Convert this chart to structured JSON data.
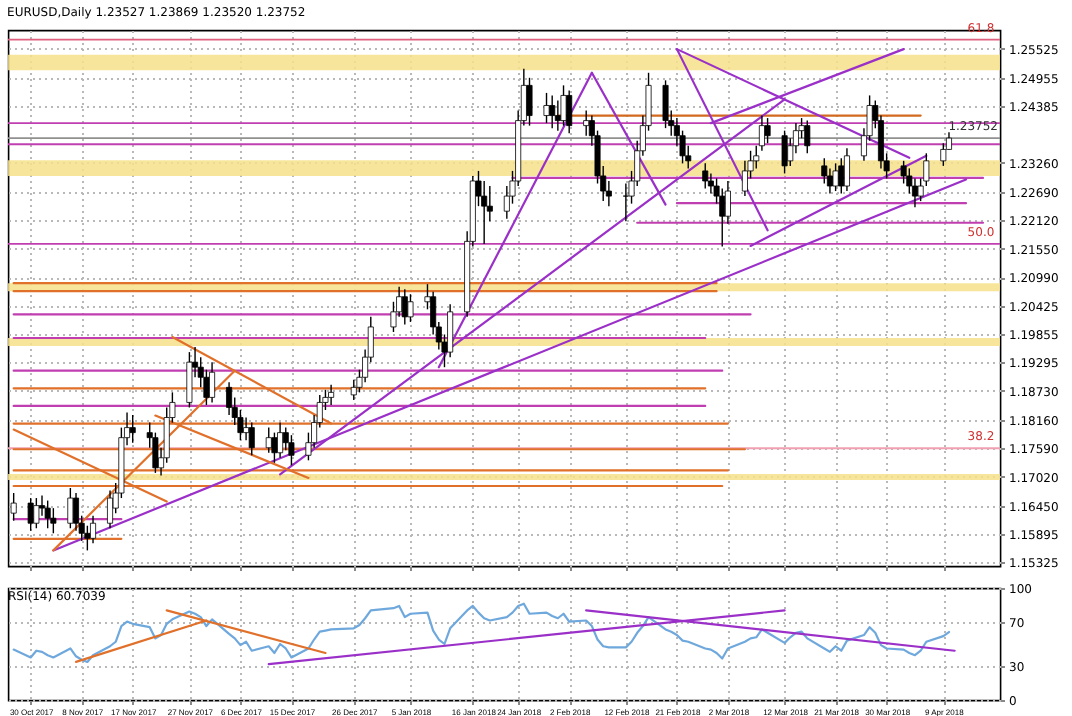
{
  "chart_data": [
    {
      "type": "candlestick",
      "title": "EURUSD,Daily  1.23527 1.23869 1.23520 1.23752",
      "tick_labels": "y",
      "grid": true,
      "x": [
        "2017-10-27",
        "2017-10-30",
        "2017-10-31",
        "2017-11-01",
        "2017-11-02",
        "2017-11-03",
        "2017-11-06",
        "2017-11-07",
        "2017-11-08",
        "2017-11-09",
        "2017-11-10",
        "2017-11-13",
        "2017-11-14",
        "2017-11-15",
        "2017-11-16",
        "2017-11-17",
        "2017-11-20",
        "2017-11-21",
        "2017-11-22",
        "2017-11-23",
        "2017-11-24",
        "2017-11-27",
        "2017-11-28",
        "2017-11-29",
        "2017-11-30",
        "2017-12-01",
        "2017-12-04",
        "2017-12-05",
        "2017-12-06",
        "2017-12-07",
        "2017-12-08",
        "2017-12-11",
        "2017-12-12",
        "2017-12-13",
        "2017-12-14",
        "2017-12-15",
        "2017-12-18",
        "2017-12-19",
        "2017-12-20",
        "2017-12-21",
        "2017-12-22",
        "2017-12-26",
        "2017-12-27",
        "2017-12-28",
        "2017-12-29",
        "2018-01-02",
        "2018-01-03",
        "2018-01-04",
        "2018-01-05",
        "2018-01-08",
        "2018-01-09",
        "2018-01-10",
        "2018-01-11",
        "2018-01-12",
        "2018-01-15",
        "2018-01-16",
        "2018-01-17",
        "2018-01-18",
        "2018-01-19",
        "2018-01-22",
        "2018-01-23",
        "2018-01-24",
        "2018-01-25",
        "2018-01-26",
        "2018-01-29",
        "2018-01-30",
        "2018-01-31",
        "2018-02-01",
        "2018-02-02",
        "2018-02-05",
        "2018-02-06",
        "2018-02-07",
        "2018-02-08",
        "2018-02-09",
        "2018-02-12",
        "2018-02-13",
        "2018-02-14",
        "2018-02-15",
        "2018-02-16",
        "2018-02-19",
        "2018-02-20",
        "2018-02-21",
        "2018-02-22",
        "2018-02-23",
        "2018-02-26",
        "2018-02-27",
        "2018-02-28",
        "2018-03-01",
        "2018-03-02",
        "2018-03-05",
        "2018-03-06",
        "2018-03-07",
        "2018-03-08",
        "2018-03-09",
        "2018-03-12",
        "2018-03-13",
        "2018-03-14",
        "2018-03-15",
        "2018-03-16",
        "2018-03-19",
        "2018-03-20",
        "2018-03-21",
        "2018-03-22",
        "2018-03-23",
        "2018-03-26",
        "2018-03-27",
        "2018-03-28",
        "2018-03-29",
        "2018-03-30",
        "2018-04-02",
        "2018-04-03",
        "2018-04-04",
        "2018-04-05",
        "2018-04-06",
        "2018-04-09",
        "2018-04-10"
      ],
      "xlim": [
        "2017-10-26",
        "2018-04-19"
      ],
      "xticks": [
        {
          "value": "2017-10-30",
          "label": null
        },
        {
          "value": "2017-11-08",
          "label": null
        },
        {
          "value": "2017-11-17",
          "label": null
        },
        {
          "value": "2017-11-27",
          "label": null
        },
        {
          "value": "2017-12-06",
          "label": null
        },
        {
          "value": "2017-12-15",
          "label": null
        },
        {
          "value": "2017-12-26",
          "label": null
        },
        {
          "value": "2018-01-05",
          "label": null
        },
        {
          "value": "2018-01-16",
          "label": null
        },
        {
          "value": "2018-01-24",
          "label": null
        },
        {
          "value": "2018-02-02",
          "label": null
        },
        {
          "value": "2018-02-12",
          "label": null
        },
        {
          "value": "2018-02-21",
          "label": null
        },
        {
          "value": "2018-03-02",
          "label": null
        },
        {
          "value": "2018-03-12",
          "label": null
        },
        {
          "value": "2018-03-21",
          "label": null
        },
        {
          "value": "2018-03-30",
          "label": null
        },
        {
          "value": "2018-04-09",
          "label": null
        }
      ],
      "ylim": [
        1.1525,
        1.259
      ],
      "yticks": [
        {
          "value": 1.15325,
          "label": "1.15325"
        },
        {
          "value": 1.15895,
          "label": "1.15895"
        },
        {
          "value": 1.1645,
          "label": "1.16450"
        },
        {
          "value": 1.1702,
          "label": "1.17020"
        },
        {
          "value": 1.1759,
          "label": "1.17590"
        },
        {
          "value": 1.1816,
          "label": "1.18160"
        },
        {
          "value": 1.1873,
          "label": "1.18730"
        },
        {
          "value": 1.19295,
          "label": "1.19295"
        },
        {
          "value": 1.19855,
          "label": "1.19855"
        },
        {
          "value": 1.20425,
          "label": "1.20425"
        },
        {
          "value": 1.2099,
          "label": "1.20990"
        },
        {
          "value": 1.2155,
          "label": "1.21550"
        },
        {
          "value": 1.2212,
          "label": "1.22120"
        },
        {
          "value": 1.2269,
          "label": "1.22690"
        },
        {
          "value": 1.2326,
          "label": "1.23260"
        },
        {
          "value": 1.24385,
          "label": "1.24385"
        },
        {
          "value": 1.24955,
          "label": "1.24955"
        },
        {
          "value": 1.25525,
          "label": "1.25525"
        }
      ],
      "ohlc": [
        [
          1.163,
          1.167,
          1.1615,
          1.165
        ],
        [
          1.165,
          1.166,
          1.1595,
          1.161
        ],
        [
          1.161,
          1.166,
          1.16,
          1.1645
        ],
        [
          1.1645,
          1.1665,
          1.1625,
          1.164
        ],
        [
          1.164,
          1.1655,
          1.16,
          1.162
        ],
        [
          1.162,
          1.164,
          1.159,
          1.161
        ],
        [
          1.161,
          1.168,
          1.16,
          1.166
        ],
        [
          1.166,
          1.167,
          1.1595,
          1.161
        ],
        [
          1.161,
          1.1625,
          1.1575,
          1.159
        ],
        [
          1.159,
          1.1605,
          1.1556,
          1.158
        ],
        [
          1.158,
          1.1625,
          1.157,
          1.161
        ],
        [
          1.161,
          1.1675,
          1.16,
          1.166
        ],
        [
          1.164,
          1.169,
          1.163,
          1.167
        ],
        [
          1.167,
          1.18,
          1.166,
          1.178
        ],
        [
          1.178,
          1.183,
          1.1765,
          1.18
        ],
        [
          1.18,
          1.1825,
          1.177,
          1.179
        ],
        [
          1.179,
          1.181,
          1.176,
          1.178
        ],
        [
          1.178,
          1.179,
          1.171,
          1.172
        ],
        [
          1.172,
          1.176,
          1.1705,
          1.174
        ],
        [
          1.174,
          1.184,
          1.173,
          1.182
        ],
        [
          1.182,
          1.187,
          1.181,
          1.185
        ],
        [
          1.185,
          1.195,
          1.184,
          1.193
        ],
        [
          1.193,
          1.196,
          1.19,
          1.192
        ],
        [
          1.192,
          1.194,
          1.188,
          1.19
        ],
        [
          1.19,
          1.1915,
          1.1845,
          1.186
        ],
        [
          1.186,
          1.193,
          1.185,
          1.191
        ],
        [
          1.188,
          1.189,
          1.1825,
          1.184
        ],
        [
          1.184,
          1.186,
          1.1805,
          1.182
        ],
        [
          1.182,
          1.1835,
          1.1775,
          1.179
        ],
        [
          1.179,
          1.182,
          1.1775,
          1.18
        ],
        [
          1.18,
          1.181,
          1.1745,
          1.176
        ],
        [
          1.176,
          1.18,
          1.175,
          1.178
        ],
        [
          1.178,
          1.179,
          1.173,
          1.175
        ],
        [
          1.175,
          1.181,
          1.174,
          1.179
        ],
        [
          1.179,
          1.18,
          1.1755,
          1.177
        ],
        [
          1.177,
          1.1785,
          1.1725,
          1.1745
        ],
        [
          1.1745,
          1.179,
          1.1735,
          1.177
        ],
        [
          1.177,
          1.1825,
          1.176,
          1.181
        ],
        [
          1.181,
          1.1865,
          1.18,
          1.185
        ],
        [
          1.185,
          1.1875,
          1.1835,
          1.186
        ],
        [
          1.186,
          1.1885,
          1.1845,
          1.187
        ],
        [
          1.1865,
          1.1895,
          1.1855,
          1.188
        ],
        [
          1.188,
          1.1915,
          1.187,
          1.19
        ],
        [
          1.19,
          1.1955,
          1.189,
          1.194
        ],
        [
          1.194,
          1.202,
          1.193,
          1.2
        ],
        [
          1.2,
          1.205,
          1.199,
          1.203
        ],
        [
          1.203,
          1.208,
          1.202,
          1.206
        ],
        [
          1.206,
          1.2075,
          1.2005,
          1.202
        ],
        [
          1.202,
          1.2065,
          1.201,
          1.205
        ],
        [
          1.205,
          1.2085,
          1.2035,
          1.206
        ],
        [
          1.206,
          1.207,
          1.1985,
          1.2
        ],
        [
          1.2,
          1.201,
          1.1955,
          1.197
        ],
        [
          1.197,
          1.1985,
          1.192,
          1.195
        ],
        [
          1.195,
          1.2045,
          1.194,
          1.203
        ],
        [
          1.203,
          1.219,
          1.202,
          1.217
        ],
        [
          1.217,
          1.23,
          1.216,
          1.229
        ],
        [
          1.229,
          1.231,
          1.224,
          1.226
        ],
        [
          1.226,
          1.229,
          1.2165,
          1.224
        ],
        [
          1.224,
          1.228,
          1.221,
          1.223
        ],
        [
          1.223,
          1.228,
          1.2215,
          1.226
        ],
        [
          1.226,
          1.231,
          1.2245,
          1.229
        ],
        [
          1.229,
          1.243,
          1.228,
          1.241
        ],
        [
          1.241,
          1.2513,
          1.24,
          1.248
        ],
        [
          1.248,
          1.2495,
          1.24,
          1.242
        ],
        [
          1.242,
          1.2465,
          1.2405,
          1.244
        ],
        [
          1.244,
          1.246,
          1.2395,
          1.242
        ],
        [
          1.242,
          1.245,
          1.239,
          1.241
        ],
        [
          1.241,
          1.248,
          1.24,
          1.246
        ],
        [
          1.246,
          1.247,
          1.2385,
          1.24
        ],
        [
          1.24,
          1.243,
          1.238,
          1.241
        ],
        [
          1.241,
          1.242,
          1.236,
          1.238
        ],
        [
          1.238,
          1.239,
          1.2285,
          1.23
        ],
        [
          1.23,
          1.232,
          1.225,
          1.227
        ],
        [
          1.227,
          1.229,
          1.224,
          1.226
        ],
        [
          1.226,
          1.2285,
          1.221,
          1.226
        ],
        [
          1.226,
          1.231,
          1.2245,
          1.229
        ],
        [
          1.229,
          1.237,
          1.228,
          1.235
        ],
        [
          1.235,
          1.242,
          1.234,
          1.24
        ],
        [
          1.24,
          1.2505,
          1.239,
          1.248
        ],
        [
          1.248,
          1.249,
          1.2395,
          1.241
        ],
        [
          1.241,
          1.243,
          1.238,
          1.24
        ],
        [
          1.24,
          1.2415,
          1.236,
          1.238
        ],
        [
          1.238,
          1.239,
          1.2325,
          1.234
        ],
        [
          1.234,
          1.236,
          1.2315,
          1.233
        ],
        [
          1.231,
          1.2325,
          1.2275,
          1.229
        ],
        [
          1.229,
          1.2305,
          1.2265,
          1.228
        ],
        [
          1.228,
          1.2295,
          1.2245,
          1.226
        ],
        [
          1.226,
          1.2275,
          1.216,
          1.222
        ],
        [
          1.222,
          1.229,
          1.2205,
          1.227
        ],
        [
          1.227,
          1.233,
          1.226,
          1.231
        ],
        [
          1.231,
          1.235,
          1.2295,
          1.233
        ],
        [
          1.233,
          1.236,
          1.2315,
          1.234
        ],
        [
          1.236,
          1.242,
          1.235,
          1.24
        ],
        [
          1.24,
          1.2415,
          1.2365,
          1.238
        ],
        [
          1.238,
          1.239,
          1.2305,
          1.232
        ],
        [
          1.233,
          1.2375,
          1.232,
          1.236
        ],
        [
          1.236,
          1.2405,
          1.2345,
          1.239
        ],
        [
          1.239,
          1.2415,
          1.2375,
          1.24
        ],
        [
          1.24,
          1.241,
          1.2345,
          1.236
        ],
        [
          1.232,
          1.2335,
          1.2285,
          1.23
        ],
        [
          1.23,
          1.2315,
          1.2265,
          1.228
        ],
        [
          1.228,
          1.2325,
          1.227,
          1.231
        ],
        [
          1.232,
          1.2335,
          1.2265,
          1.228
        ],
        [
          1.228,
          1.2355,
          1.227,
          1.234
        ],
        [
          1.234,
          1.2395,
          1.233,
          1.238
        ],
        [
          1.238,
          1.246,
          1.237,
          1.244
        ],
        [
          1.244,
          1.245,
          1.2395,
          1.241
        ],
        [
          1.241,
          1.242,
          1.2315,
          1.233
        ],
        [
          1.233,
          1.2345,
          1.2295,
          1.231
        ],
        [
          1.232,
          1.233,
          1.2285,
          1.23
        ],
        [
          1.23,
          1.2315,
          1.2265,
          1.228
        ],
        [
          1.228,
          1.2295,
          1.2238,
          1.226
        ],
        [
          1.226,
          1.2295,
          1.225,
          1.228
        ],
        [
          1.229,
          1.2345,
          1.228,
          1.233
        ],
        [
          1.233,
          1.2365,
          1.232,
          1.23527
        ],
        [
          1.23527,
          1.23869,
          1.2352,
          1.23752
        ]
      ],
      "series": [
        {
          "type": "line",
          "color": "#d2691e",
          "x": [
            "2018-01-31",
            "2018-04-05"
          ],
          "values": [
            1.242,
            1.242
          ]
        },
        {
          "type": "line",
          "color": "#c03fb0",
          "x": [
            "2018-01-23",
            "2018-04-16"
          ],
          "values": [
            1.2296,
            1.2296
          ]
        },
        {
          "type": "line",
          "color": "#c03fb0",
          "x": [
            "2018-02-21",
            "2018-04-13"
          ],
          "values": [
            1.2246,
            1.2246
          ]
        },
        {
          "type": "line",
          "color": "#c03fb0",
          "x": [
            "2018-02-14",
            "2018-04-16"
          ],
          "values": [
            1.2207,
            1.2207
          ]
        },
        {
          "type": "line",
          "color": "#e0702a",
          "x": [
            "2017-10-27",
            "2018-02-28"
          ],
          "values": [
            1.2087,
            1.2087
          ]
        },
        {
          "type": "line",
          "color": "#e0702a",
          "x": [
            "2017-10-27",
            "2018-02-28"
          ],
          "values": [
            1.2071,
            1.2071
          ]
        },
        {
          "type": "line",
          "color": "#c03fb0",
          "x": [
            "2017-10-27",
            "2018-03-06"
          ],
          "values": [
            1.2025,
            1.2025
          ]
        },
        {
          "type": "line",
          "color": "#c03fb0",
          "x": [
            "2017-10-27",
            "2018-02-26"
          ],
          "values": [
            1.1978,
            1.1978
          ]
        },
        {
          "type": "line",
          "color": "#c03fb0",
          "x": [
            "2017-10-27",
            "2018-03-01"
          ],
          "values": [
            1.1913,
            1.1913
          ]
        },
        {
          "type": "line",
          "color": "#e0702a",
          "x": [
            "2017-10-27",
            "2018-02-26"
          ],
          "values": [
            1.1878,
            1.1878
          ]
        },
        {
          "type": "line",
          "color": "#c03fb0",
          "x": [
            "2017-10-27",
            "2018-02-26"
          ],
          "values": [
            1.1843,
            1.1843
          ]
        },
        {
          "type": "line",
          "color": "#e0702a",
          "x": [
            "2017-10-27",
            "2018-03-02"
          ],
          "values": [
            1.1808,
            1.1808
          ]
        },
        {
          "type": "line",
          "color": "#e0702a",
          "x": [
            "2017-10-27",
            "2018-03-05"
          ],
          "values": [
            1.1757,
            1.1757
          ]
        },
        {
          "type": "line",
          "color": "#e0702a",
          "x": [
            "2017-10-27",
            "2018-03-02"
          ],
          "values": [
            1.1715,
            1.1715
          ]
        },
        {
          "type": "line",
          "color": "#e0702a",
          "x": [
            "2017-10-27",
            "2018-03-01"
          ],
          "values": [
            1.1684,
            1.1684
          ]
        },
        {
          "type": "line",
          "color": "#c03fb0",
          "x": [
            "2017-10-27",
            "2017-11-15"
          ],
          "values": [
            1.1618,
            1.1618
          ]
        },
        {
          "type": "line",
          "color": "#e0702a",
          "x": [
            "2017-10-27",
            "2017-11-15"
          ],
          "values": [
            1.1579,
            1.1579
          ]
        },
        {
          "type": "line",
          "color": "#9b30c8",
          "x": [
            "2017-11-03",
            "2018-04-13"
          ],
          "values": [
            1.1556,
            1.2293
          ]
        },
        {
          "type": "line",
          "color": "#9b30c8",
          "x": [
            "2017-12-13",
            "2018-03-12"
          ],
          "values": [
            1.1707,
            1.2452
          ]
        },
        {
          "type": "line",
          "color": "#9b30c8",
          "x": [
            "2018-02-27",
            "2018-04-02"
          ],
          "values": [
            1.2405,
            1.2552
          ]
        },
        {
          "type": "line",
          "color": "#9b30c8",
          "x": [
            "2018-02-21",
            "2018-03-09"
          ],
          "values": [
            1.2552,
            1.2192
          ]
        },
        {
          "type": "line",
          "color": "#9b30c8",
          "x": [
            "2018-02-21",
            "2018-04-03"
          ],
          "values": [
            1.2552,
            1.2336
          ]
        },
        {
          "type": "line",
          "color": "#9b30c8",
          "x": [
            "2018-02-06",
            "2018-02-19"
          ],
          "values": [
            1.2505,
            1.2243
          ]
        },
        {
          "type": "line",
          "color": "#9b30c8",
          "x": [
            "2018-03-06",
            "2018-04-06"
          ],
          "values": [
            1.2161,
            1.234
          ]
        },
        {
          "type": "line",
          "color": "#9b30c8",
          "x": [
            "2018-01-10",
            "2018-02-06"
          ],
          "values": [
            1.192,
            1.2505
          ]
        },
        {
          "type": "line",
          "color": "#e0702a",
          "x": [
            "2017-11-03",
            "2017-12-05"
          ],
          "values": [
            1.1556,
            1.1913
          ]
        },
        {
          "type": "line",
          "color": "#e0702a",
          "x": [
            "2017-11-24",
            "2017-12-22"
          ],
          "values": [
            1.198,
            1.1808
          ]
        },
        {
          "type": "line",
          "color": "#e0702a",
          "x": [
            "2017-11-21",
            "2017-12-18"
          ],
          "values": [
            1.1824,
            1.17
          ]
        },
        {
          "type": "line",
          "color": "#e0702a",
          "x": [
            "2017-10-27",
            "2017-11-23"
          ],
          "values": [
            1.1796,
            1.1653
          ]
        }
      ],
      "ref_lines": [
        {
          "axis": "y",
          "value": 1.2571,
          "color": "#e06080"
        },
        {
          "axis": "y",
          "value": 1.2405,
          "color": "#c03fb0"
        },
        {
          "axis": "y",
          "value": 1.2363,
          "color": "#c03fb0"
        },
        {
          "axis": "y",
          "value": 1.23752,
          "label": "1.23752",
          "color": "#909090"
        },
        {
          "axis": "y",
          "value": 1.2165,
          "color": "#c03fb0"
        },
        {
          "axis": "y",
          "value": 1.1759,
          "color": "#f0a0b0"
        }
      ],
      "bands": [
        {
          "axis": "y",
          "from": 1.251,
          "to": 1.2541,
          "color": "#f5e08a"
        },
        {
          "axis": "y",
          "from": 1.23,
          "to": 1.2331,
          "color": "#f5e08a"
        },
        {
          "axis": "y",
          "from": 1.2071,
          "to": 1.2087,
          "color": "#f5e08a"
        },
        {
          "axis": "y",
          "from": 1.1962,
          "to": 1.1978,
          "color": "#f5e08a"
        },
        {
          "axis": "y",
          "from": 1.1696,
          "to": 1.1708,
          "color": "#f5e08a"
        }
      ],
      "annotations": [
        {
          "text": "61.8",
          "x": "2018-04-18",
          "y": 1.2571
        },
        {
          "text": "50.0",
          "x": "2018-04-18",
          "y": 1.2165
        },
        {
          "text": "38.2",
          "x": "2018-04-18",
          "y": 1.1759
        }
      ]
    },
    {
      "type": "line",
      "title": "RSI(14) 60.7039",
      "grid": true,
      "x": [
        "2017-10-27",
        "2017-10-30",
        "2017-10-31",
        "2017-11-01",
        "2017-11-02",
        "2017-11-03",
        "2017-11-06",
        "2017-11-07",
        "2017-11-08",
        "2017-11-09",
        "2017-11-10",
        "2017-11-13",
        "2017-11-14",
        "2017-11-15",
        "2017-11-16",
        "2017-11-17",
        "2017-11-20",
        "2017-11-21",
        "2017-11-22",
        "2017-11-23",
        "2017-11-24",
        "2017-11-27",
        "2017-11-28",
        "2017-11-29",
        "2017-11-30",
        "2017-12-01",
        "2017-12-04",
        "2017-12-05",
        "2017-12-06",
        "2017-12-07",
        "2017-12-08",
        "2017-12-11",
        "2017-12-12",
        "2017-12-13",
        "2017-12-14",
        "2017-12-15",
        "2017-12-18",
        "2017-12-19",
        "2017-12-20",
        "2017-12-21",
        "2017-12-22",
        "2017-12-26",
        "2017-12-27",
        "2017-12-28",
        "2017-12-29",
        "2018-01-02",
        "2018-01-03",
        "2018-01-04",
        "2018-01-05",
        "2018-01-08",
        "2018-01-09",
        "2018-01-10",
        "2018-01-11",
        "2018-01-12",
        "2018-01-15",
        "2018-01-16",
        "2018-01-17",
        "2018-01-18",
        "2018-01-19",
        "2018-01-22",
        "2018-01-23",
        "2018-01-24",
        "2018-01-25",
        "2018-01-26",
        "2018-01-29",
        "2018-01-30",
        "2018-01-31",
        "2018-02-01",
        "2018-02-02",
        "2018-02-05",
        "2018-02-06",
        "2018-02-07",
        "2018-02-08",
        "2018-02-09",
        "2018-02-12",
        "2018-02-13",
        "2018-02-14",
        "2018-02-15",
        "2018-02-16",
        "2018-02-19",
        "2018-02-20",
        "2018-02-21",
        "2018-02-22",
        "2018-02-23",
        "2018-02-26",
        "2018-02-27",
        "2018-02-28",
        "2018-03-01",
        "2018-03-02",
        "2018-03-05",
        "2018-03-06",
        "2018-03-07",
        "2018-03-08",
        "2018-03-09",
        "2018-03-12",
        "2018-03-13",
        "2018-03-14",
        "2018-03-15",
        "2018-03-16",
        "2018-03-19",
        "2018-03-20",
        "2018-03-21",
        "2018-03-22",
        "2018-03-23",
        "2018-03-26",
        "2018-03-27",
        "2018-03-28",
        "2018-03-29",
        "2018-03-30",
        "2018-04-02",
        "2018-04-03",
        "2018-04-04",
        "2018-04-05",
        "2018-04-06",
        "2018-04-09",
        "2018-04-10"
      ],
      "xlim": [
        "2017-10-26",
        "2018-04-19"
      ],
      "xticks": [
        {
          "value": "2017-10-30",
          "label": "30 Oct 2017"
        },
        {
          "value": "2017-11-08",
          "label": "8 Nov 2017"
        },
        {
          "value": "2017-11-17",
          "label": "17 Nov 2017"
        },
        {
          "value": "2017-11-27",
          "label": "27 Nov 2017"
        },
        {
          "value": "2017-12-06",
          "label": "6 Dec 2017"
        },
        {
          "value": "2017-12-15",
          "label": "15 Dec 2017"
        },
        {
          "value": "2017-12-26",
          "label": "26 Dec 2017"
        },
        {
          "value": "2018-01-05",
          "label": "5 Jan 2018"
        },
        {
          "value": "2018-01-16",
          "label": "16 Jan 2018"
        },
        {
          "value": "2018-01-24",
          "label": "24 Jan 2018"
        },
        {
          "value": "2018-02-02",
          "label": "2 Feb 2018"
        },
        {
          "value": "2018-02-12",
          "label": "12 Feb 2018"
        },
        {
          "value": "2018-02-21",
          "label": "21 Feb 2018"
        },
        {
          "value": "2018-03-02",
          "label": "2 Mar 2018"
        },
        {
          "value": "2018-03-12",
          "label": "12 Mar 2018"
        },
        {
          "value": "2018-03-21",
          "label": "21 Mar 2018"
        },
        {
          "value": "2018-03-30",
          "label": "30 Mar 2018"
        },
        {
          "value": "2018-04-09",
          "label": "9 Apr 2018"
        }
      ],
      "ylim": [
        0,
        100
      ],
      "yticks": [
        0,
        30,
        70,
        100
      ],
      "series": [
        {
          "color": "#6fa8dc",
          "values": [
            45,
            38,
            44,
            43,
            40,
            38,
            46,
            39,
            36,
            34,
            40,
            48,
            52,
            66,
            70,
            68,
            65,
            55,
            58,
            68,
            72,
            79,
            77,
            74,
            66,
            72,
            59,
            55,
            49,
            52,
            44,
            48,
            42,
            50,
            46,
            38,
            46,
            54,
            61,
            62,
            63,
            64,
            67,
            73,
            80,
            82,
            84,
            74,
            77,
            78,
            62,
            54,
            50,
            64,
            80,
            84,
            78,
            73,
            71,
            74,
            78,
            84,
            86,
            77,
            78,
            75,
            73,
            77,
            70,
            71,
            66,
            54,
            48,
            47,
            47,
            52,
            60,
            66,
            74,
            63,
            61,
            58,
            53,
            52,
            46,
            45,
            42,
            37,
            46,
            52,
            55,
            56,
            63,
            60,
            51,
            56,
            60,
            61,
            55,
            46,
            43,
            48,
            44,
            53,
            58,
            65,
            60,
            49,
            46,
            45,
            42,
            40,
            44,
            52,
            57,
            60.7
          ]
        },
        {
          "color": "#e0702a",
          "x": [
            "2017-11-07",
            "2017-11-30"
          ],
          "values": [
            34,
            71
          ]
        },
        {
          "color": "#e0702a",
          "x": [
            "2017-11-23",
            "2017-12-21"
          ],
          "values": [
            80,
            42
          ]
        },
        {
          "color": "#9b30c8",
          "x": [
            "2017-12-11",
            "2018-03-12"
          ],
          "values": [
            32,
            80
          ]
        },
        {
          "color": "#9b30c8",
          "x": [
            "2018-02-05",
            "2018-04-11"
          ],
          "values": [
            80,
            44
          ]
        }
      ]
    }
  ]
}
